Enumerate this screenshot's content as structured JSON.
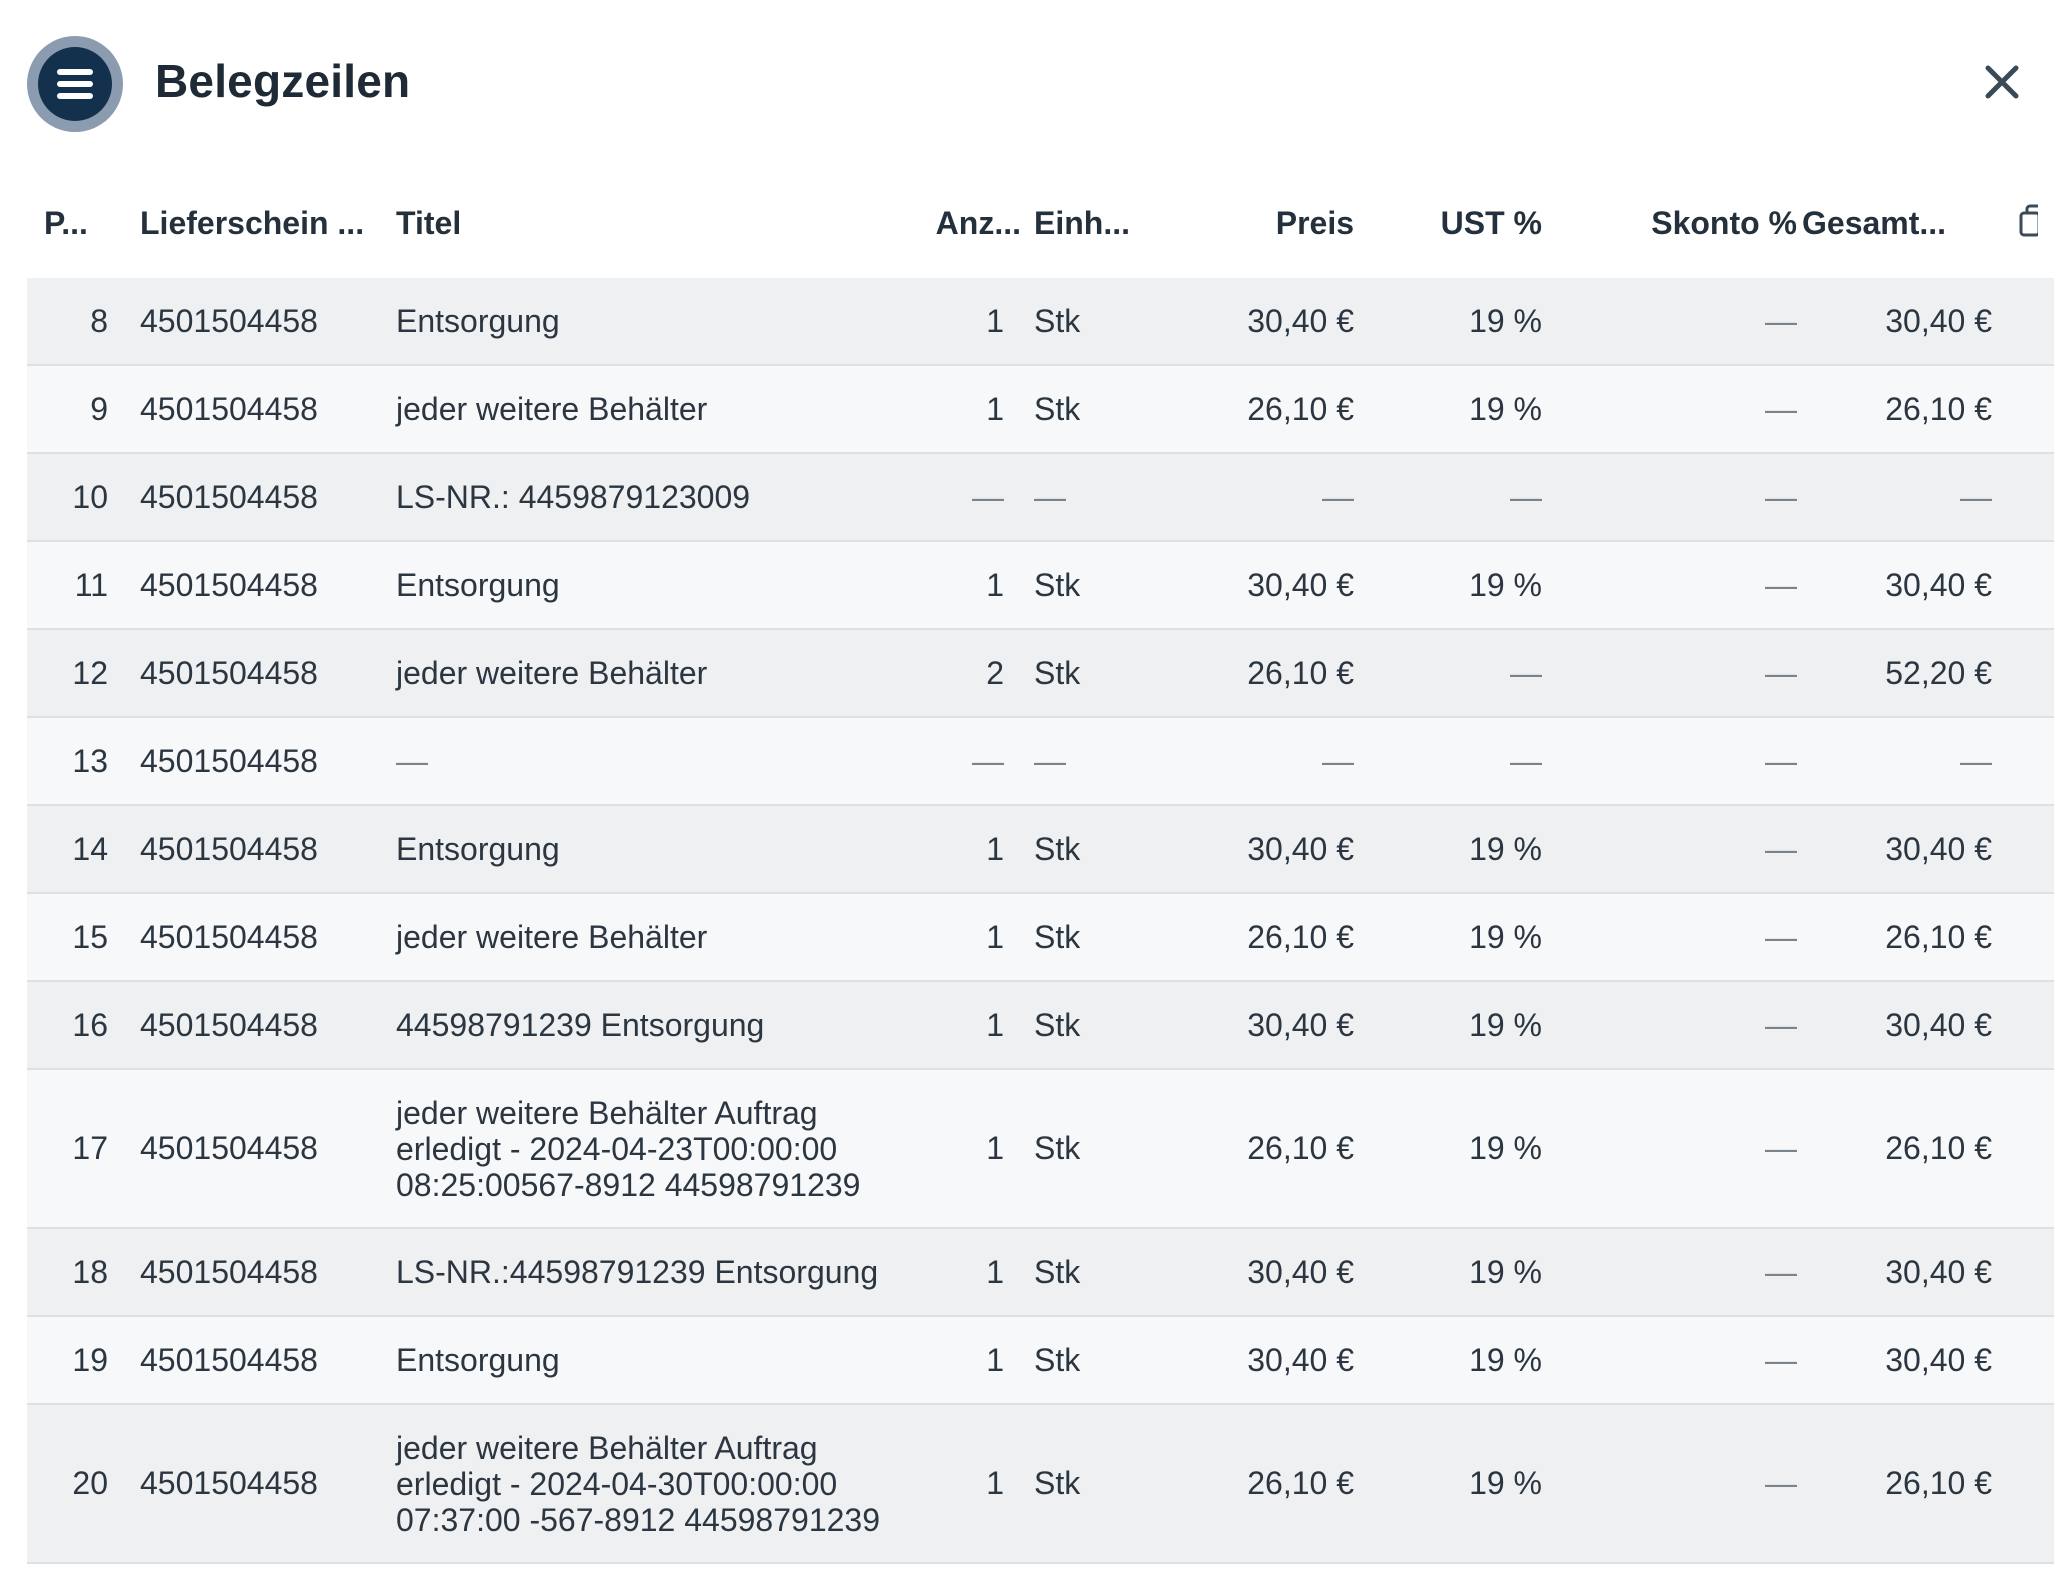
{
  "header": {
    "title": "Belegzeilen"
  },
  "columns": {
    "pos": "P...",
    "lieferschein": "Lieferschein ...",
    "titel": "Titel",
    "anzahl": "Anz...",
    "einheit": "Einh...",
    "preis": "Preis",
    "ust": "UST %",
    "skonto": "Skonto %",
    "gesamt": "Gesamt..."
  },
  "rows": [
    {
      "pos": "8",
      "ls": "4501504458",
      "titel": "Entsorgung",
      "anz": "1",
      "einh": "Stk",
      "preis": "30,40 €",
      "ust": "19 %",
      "skonto": "—",
      "gesamt": "30,40 €"
    },
    {
      "pos": "9",
      "ls": "4501504458",
      "titel": "jeder weitere Behälter",
      "anz": "1",
      "einh": "Stk",
      "preis": "26,10 €",
      "ust": "19 %",
      "skonto": "—",
      "gesamt": "26,10 €"
    },
    {
      "pos": "10",
      "ls": "4501504458",
      "titel": "LS-NR.: 4459879123009",
      "anz": "—",
      "einh": "—",
      "preis": "—",
      "ust": "—",
      "skonto": "—",
      "gesamt": "—"
    },
    {
      "pos": "11",
      "ls": "4501504458",
      "titel": "Entsorgung",
      "anz": "1",
      "einh": "Stk",
      "preis": "30,40 €",
      "ust": "19 %",
      "skonto": "—",
      "gesamt": "30,40 €"
    },
    {
      "pos": "12",
      "ls": "4501504458",
      "titel": "jeder weitere Behälter",
      "anz": "2",
      "einh": "Stk",
      "preis": "26,10 €",
      "ust": "—",
      "skonto": "—",
      "gesamt": "52,20 €"
    },
    {
      "pos": "13",
      "ls": "4501504458",
      "titel": "—",
      "anz": "—",
      "einh": "—",
      "preis": "—",
      "ust": "—",
      "skonto": "—",
      "gesamt": "—"
    },
    {
      "pos": "14",
      "ls": "4501504458",
      "titel": "Entsorgung",
      "anz": "1",
      "einh": "Stk",
      "preis": "30,40 €",
      "ust": "19 %",
      "skonto": "—",
      "gesamt": "30,40 €"
    },
    {
      "pos": "15",
      "ls": "4501504458",
      "titel": "jeder weitere Behälter",
      "anz": "1",
      "einh": "Stk",
      "preis": "26,10 €",
      "ust": "19 %",
      "skonto": "—",
      "gesamt": "26,10 €"
    },
    {
      "pos": "16",
      "ls": "4501504458",
      "titel": "44598791239 Entsorgung",
      "anz": "1",
      "einh": "Stk",
      "preis": "30,40 €",
      "ust": "19 %",
      "skonto": "—",
      "gesamt": "30,40 €"
    },
    {
      "pos": "17",
      "ls": "4501504458",
      "titel": "jeder weitere Behälter Auftrag erledigt - 2024-04-23T00:00:00 08:25:00567-8912 44598791239",
      "anz": "1",
      "einh": "Stk",
      "preis": "26,10 €",
      "ust": "19 %",
      "skonto": "—",
      "gesamt": "26,10 €"
    },
    {
      "pos": "18",
      "ls": "4501504458",
      "titel": "LS-NR.:44598791239  Entsorgung",
      "anz": "1",
      "einh": "Stk",
      "preis": "30,40 €",
      "ust": "19 %",
      "skonto": "—",
      "gesamt": "30,40 €"
    },
    {
      "pos": "19",
      "ls": "4501504458",
      "titel": "Entsorgung",
      "anz": "1",
      "einh": "Stk",
      "preis": "30,40 €",
      "ust": "19 %",
      "skonto": "—",
      "gesamt": "30,40 €"
    },
    {
      "pos": "20",
      "ls": "4501504458",
      "titel": "jeder weitere Behälter Auftrag erledigt - 2024-04-30T00:00:00 07:37:00 -567-8912 44598791239",
      "anz": "1",
      "einh": "Stk",
      "preis": "26,10 €",
      "ust": "19 %",
      "skonto": "—",
      "gesamt": "26,10 €"
    }
  ]
}
